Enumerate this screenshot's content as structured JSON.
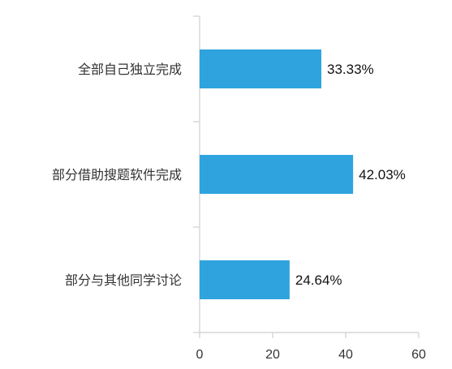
{
  "chart_data": {
    "type": "bar",
    "orientation": "horizontal",
    "categories": [
      "全部自己独立完成",
      "部分借助搜题软件完成",
      "部分与其他同学讨论"
    ],
    "values": [
      33.33,
      42.03,
      24.64
    ],
    "value_labels": [
      "33.33%",
      "42.03%",
      "24.64%"
    ],
    "xlim": [
      0,
      60
    ],
    "x_ticks": [
      0,
      20,
      40,
      60
    ],
    "x_tick_labels": [
      "0",
      "20",
      "40",
      "60"
    ],
    "grid": false,
    "bar_color": "#2fa3de"
  }
}
